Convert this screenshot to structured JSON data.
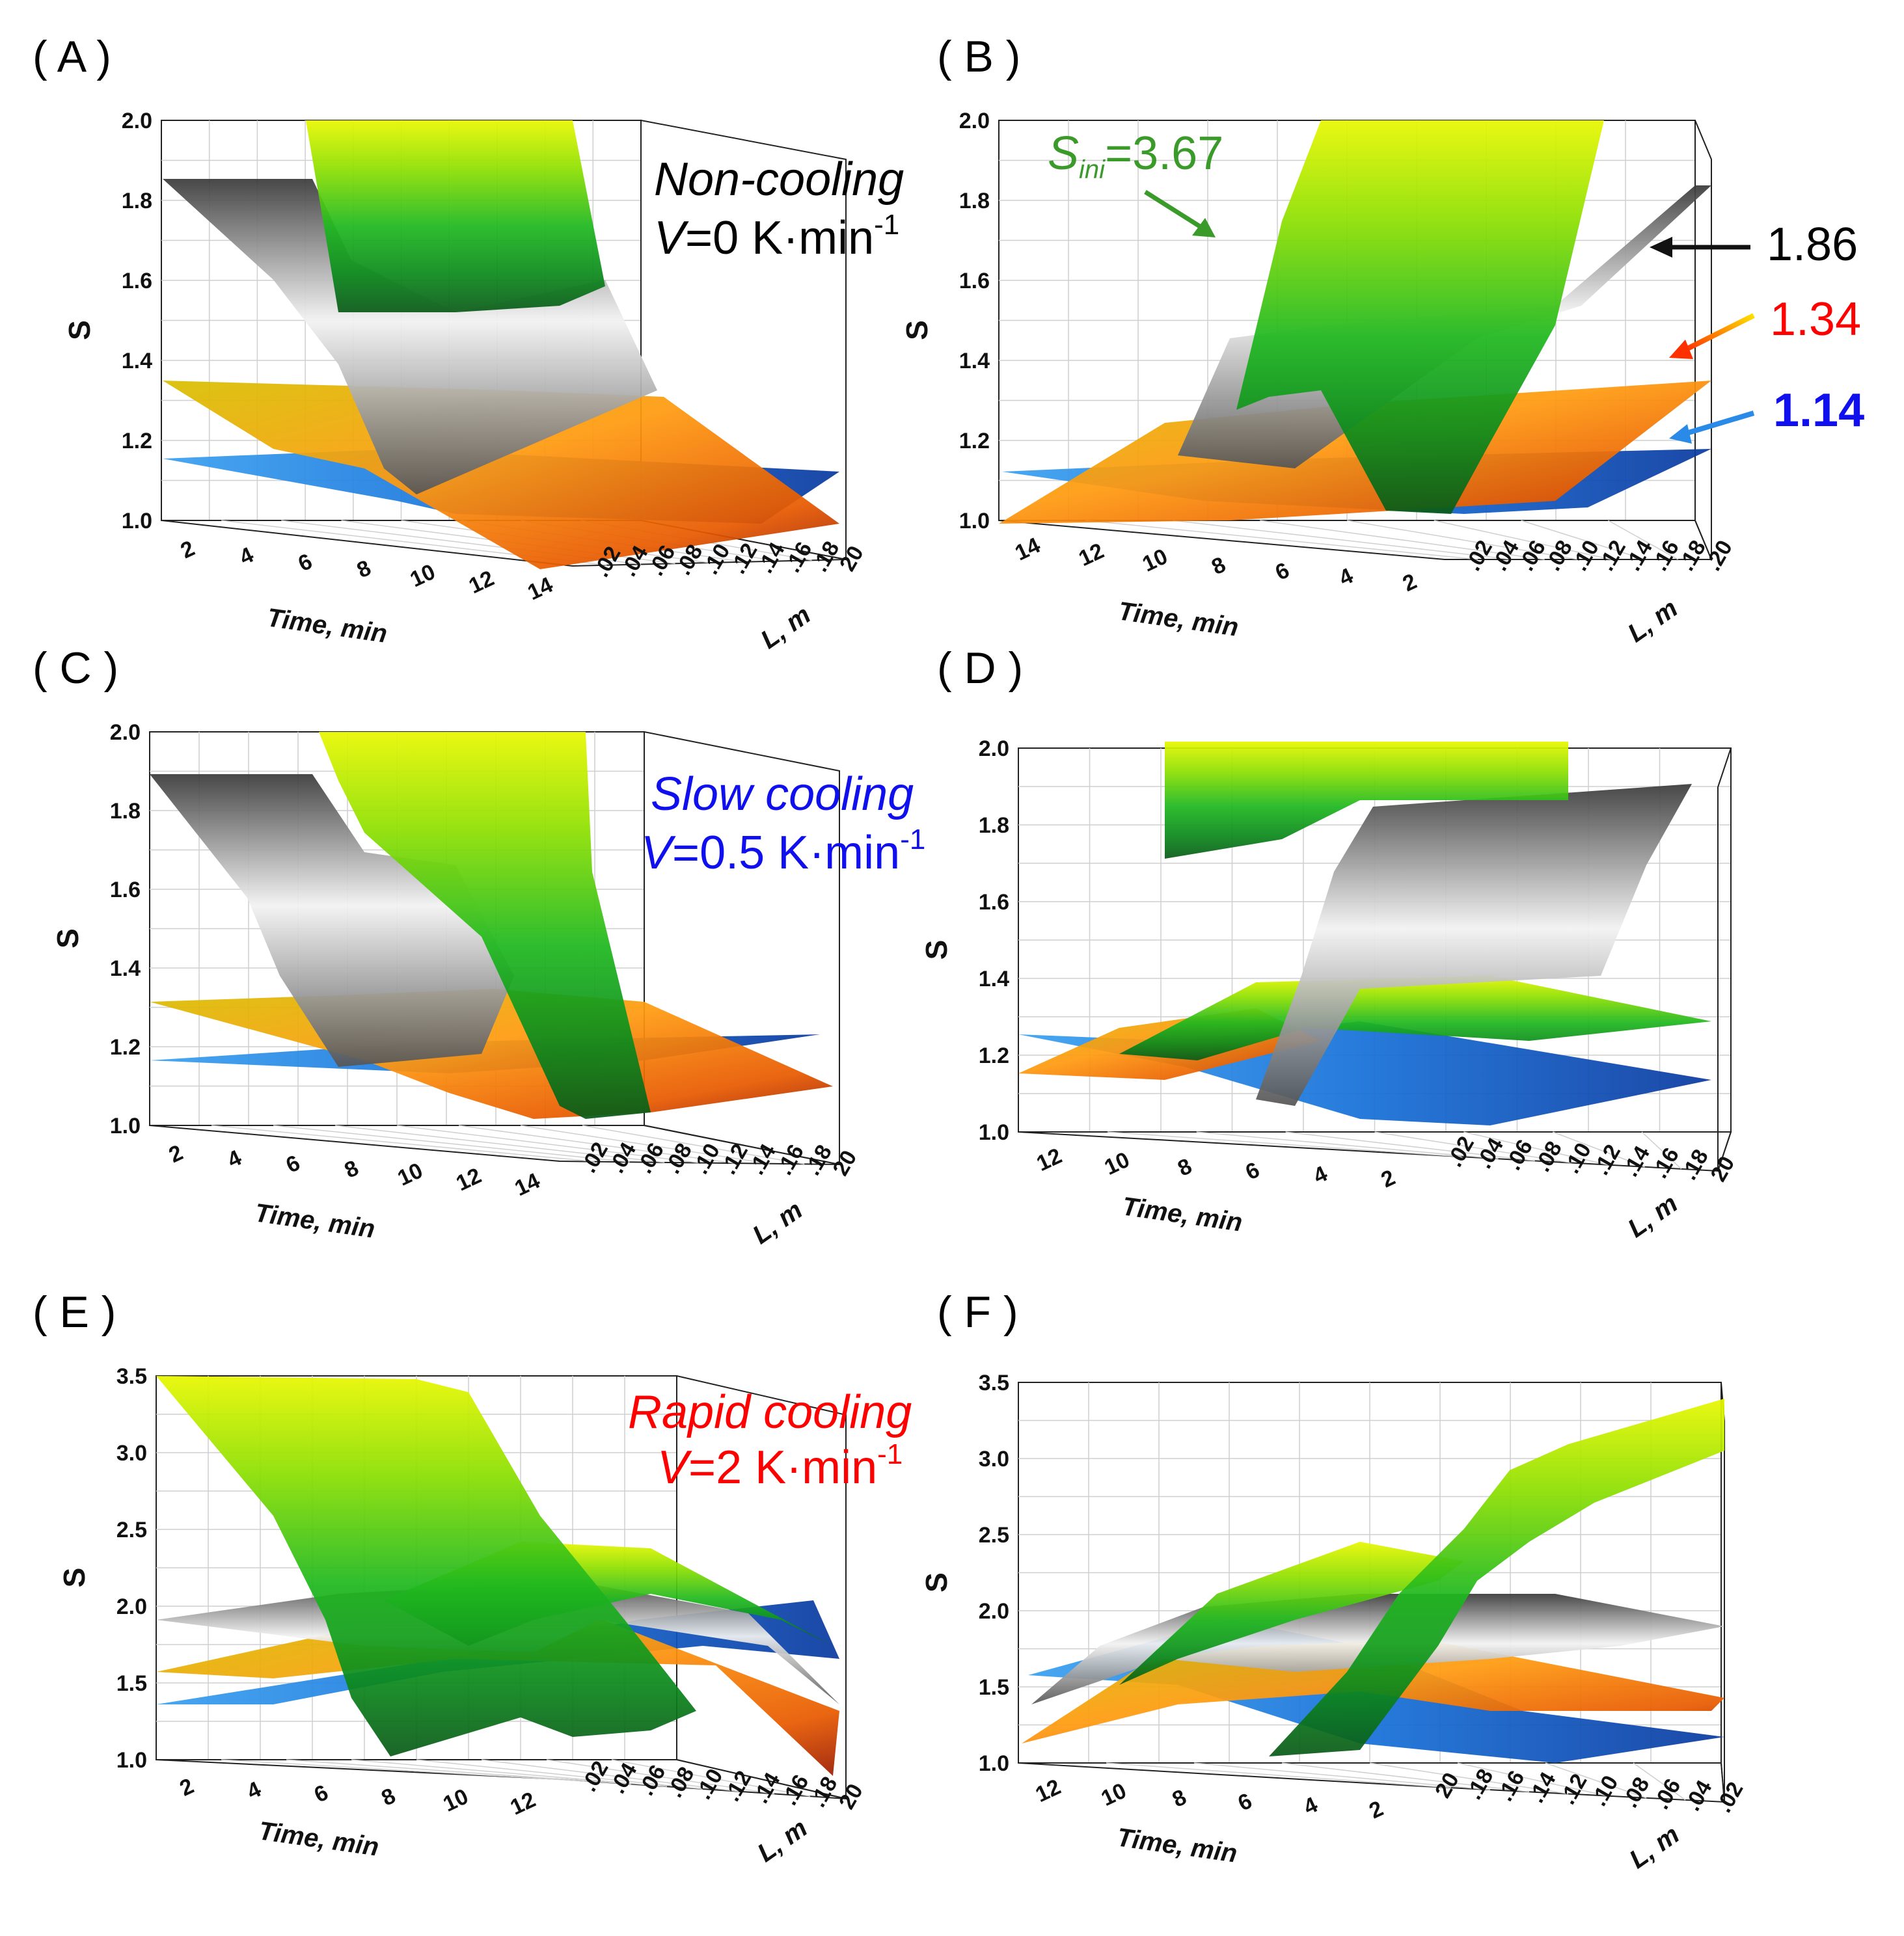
{
  "panels": [
    {
      "label": "( A )",
      "time_ticks": [
        "2",
        "4",
        "6",
        "8",
        "10",
        "12",
        "14"
      ],
      "l_ticks": [
        ".02",
        ".04",
        ".06",
        ".08",
        ".10",
        ".12",
        ".14",
        ".16",
        ".18",
        "20"
      ]
    },
    {
      "label": "( B )",
      "time_ticks": [
        "14",
        "12",
        "10",
        "8",
        "6",
        "4",
        "2"
      ],
      "l_ticks": [
        ".02",
        ".04",
        ".06",
        ".08",
        ".10",
        ".12",
        ".14",
        ".16",
        ".18",
        ".20"
      ]
    },
    {
      "label": "( C )",
      "time_ticks": [
        "2",
        "4",
        "6",
        "8",
        "10",
        "12",
        "14"
      ],
      "l_ticks": [
        ".02",
        ".04",
        ".06",
        ".08",
        ".10",
        ".12",
        ".14",
        ".16",
        ".18",
        "20"
      ]
    },
    {
      "label": "( D )",
      "time_ticks": [
        "12",
        "10",
        "8",
        "6",
        "4",
        "2"
      ],
      "l_ticks": [
        ".02",
        ".04",
        ".06",
        ".08",
        ".10",
        ".12",
        ".14",
        ".16",
        ".18",
        "20"
      ]
    },
    {
      "label": "( E )",
      "time_ticks": [
        "2",
        "4",
        "6",
        "8",
        "10",
        "12"
      ],
      "l_ticks": [
        ".02",
        ".04",
        ".06",
        ".08",
        ".10",
        ".12",
        ".14",
        ".16",
        ".18",
        "20"
      ]
    },
    {
      "label": "( F )",
      "time_ticks": [
        "12",
        "10",
        "8",
        "6",
        "4",
        "2"
      ],
      "l_ticks": [
        "20",
        ".18",
        ".16",
        ".14",
        ".12",
        ".10",
        ".08",
        ".06",
        ".04",
        ".02"
      ]
    }
  ],
  "axis_titles": {
    "z": "S",
    "time": "Time, min",
    "l": "L, m"
  },
  "y_ticks_low": [
    "2.0",
    "1.8",
    "1.6",
    "1.4",
    "1.2",
    "1.0"
  ],
  "y_ticks_high": [
    "3.5",
    "3.0",
    "2.5",
    "2.0",
    "1.5",
    "1.0"
  ],
  "annotations": {
    "noncooling_title": "Non-cooling",
    "noncooling_rate": "=0 K·min",
    "slow_title": "Slow cooling",
    "slow_rate": "=0.5 K·min",
    "rapid_title": "Rapid cooling",
    "rapid_rate": "=2 K·min",
    "v_symbol": "V",
    "exp": "-1",
    "s_ini_s": "S",
    "s_ini_sub": "ini",
    "s_ini_value": "=3.67",
    "val_gray": "1.86",
    "val_orange": "1.34",
    "val_blue": "1.14"
  },
  "colors": {
    "green": "#3a9a2a",
    "gray": "#8a8a8a",
    "orange": "#f07a10",
    "blue": "#1a7fe0",
    "red": "#ff0000",
    "bluetext": "#1010ee"
  },
  "chart_data": [
    {
      "type": "surface",
      "panel": "A",
      "title": "Non-cooling V=0 K·min-1",
      "xlabel": "Time, min",
      "ylabel": "L, m",
      "zlabel": "S",
      "zlim": [
        1.0,
        2.0
      ],
      "series": [
        {
          "name": "S_ini=3.67",
          "color": "green"
        },
        {
          "name": "1.86",
          "color": "gray"
        },
        {
          "name": "1.34",
          "color": "orange"
        },
        {
          "name": "1.14",
          "color": "blue"
        }
      ]
    },
    {
      "type": "surface",
      "panel": "B",
      "xlabel": "Time, min",
      "ylabel": "L, m",
      "zlabel": "S",
      "zlim": [
        1.0,
        2.0
      ],
      "series": [
        {
          "name": "S_ini=3.67",
          "color": "green"
        },
        {
          "name": "1.86",
          "color": "gray"
        },
        {
          "name": "1.34",
          "color": "orange"
        },
        {
          "name": "1.14",
          "color": "blue"
        }
      ]
    },
    {
      "type": "surface",
      "panel": "C",
      "title": "Slow cooling V=0.5 K·min-1",
      "xlabel": "Time, min",
      "ylabel": "L, m",
      "zlabel": "S",
      "zlim": [
        1.0,
        2.0
      ]
    },
    {
      "type": "surface",
      "panel": "D",
      "xlabel": "Time, min",
      "ylabel": "L, m",
      "zlabel": "S",
      "zlim": [
        1.0,
        2.0
      ]
    },
    {
      "type": "surface",
      "panel": "E",
      "title": "Rapid cooling V=2 K·min-1",
      "xlabel": "Time, min",
      "ylabel": "L, m",
      "zlabel": "S",
      "zlim": [
        1.0,
        3.5
      ]
    },
    {
      "type": "surface",
      "panel": "F",
      "xlabel": "Time, min",
      "ylabel": "L, m",
      "zlabel": "S",
      "zlim": [
        1.0,
        3.5
      ]
    }
  ]
}
